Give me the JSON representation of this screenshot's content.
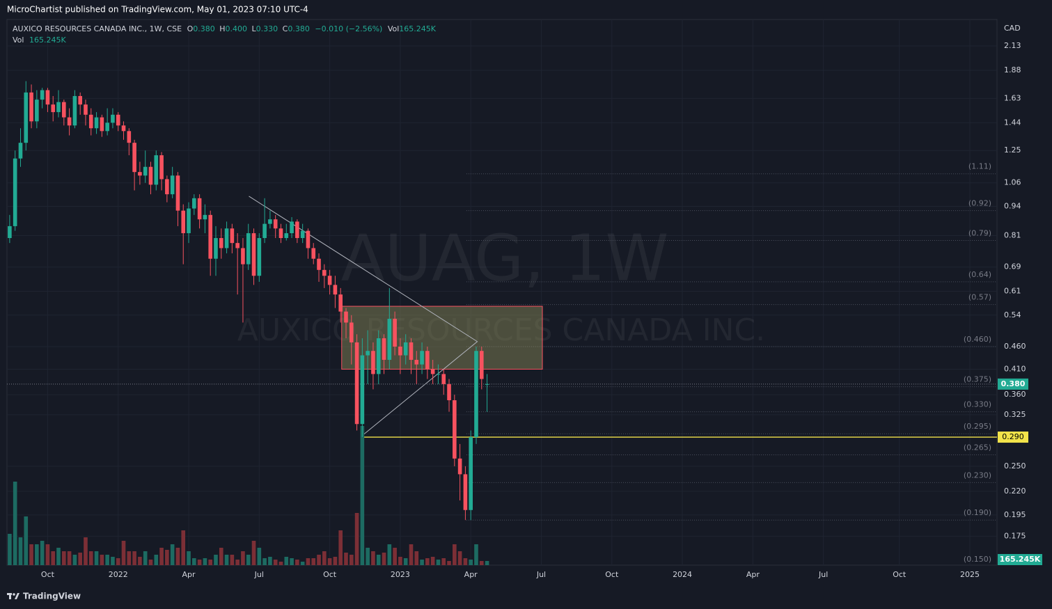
{
  "header": {
    "publisher": "MicroChartist published on TradingView.com, May 01, 2023 07:10 UTC-4",
    "brand": "TradingView"
  },
  "chart_data": {
    "type": "candlestick",
    "title": "AUXICO RESOURCES CANADA INC., 1W, CSE",
    "legend": {
      "o_label": "O",
      "o": "0.380",
      "h_label": "H",
      "h": "0.400",
      "l_label": "L",
      "l": "0.330",
      "c_label": "C",
      "c": "0.380",
      "change": "−0.010 (−2.56%)",
      "vol_label": "Vol",
      "vol": "165.245K"
    },
    "watermark": {
      "symbol": "AUAG, 1W",
      "name": "AUXICO RESOURCES CANADA INC."
    },
    "y_label": "CAD",
    "log_scale": true,
    "grid": true,
    "ylim": [
      0.151,
      2.42
    ],
    "yticks": [
      2.13,
      1.88,
      1.63,
      1.44,
      1.25,
      1.06,
      0.94,
      0.81,
      0.69,
      0.61,
      0.54,
      {
        "value": 0.46,
        "label": "0.460"
      },
      {
        "value": 0.41,
        "label": "0.410"
      },
      {
        "value": 0.36,
        "label": "0.360"
      },
      0.325,
      {
        "value": 0.25,
        "label": "0.250"
      },
      {
        "value": 0.22,
        "label": "0.220"
      },
      0.195,
      0.175
    ],
    "xlim": [
      -0.5,
      182
    ],
    "xticks": [
      {
        "value": 7,
        "label": "Oct"
      },
      {
        "value": 20,
        "label": "2022"
      },
      {
        "value": 33,
        "label": "Apr"
      },
      {
        "value": 46,
        "label": "Jul"
      },
      {
        "value": 59,
        "label": "Oct"
      },
      {
        "value": 72,
        "label": "2023"
      },
      {
        "value": 85,
        "label": "Apr"
      },
      {
        "value": 98,
        "label": "Jul"
      },
      {
        "value": 111,
        "label": "Oct"
      },
      {
        "value": 124,
        "label": "2024"
      },
      {
        "value": 137,
        "label": "Apr"
      },
      {
        "value": 150,
        "label": "Jul"
      },
      {
        "value": 164,
        "label": "Oct"
      },
      {
        "value": 177,
        "label": "2025"
      }
    ],
    "up_color": "#22ab94",
    "down_color": "#f7525f",
    "up_volume_color": "#1d6b62",
    "down_volume_color": "#7c2f36",
    "open": [
      0.8,
      0.85,
      1.2,
      1.3,
      1.68,
      1.45,
      1.62,
      1.7,
      1.58,
      1.52,
      1.6,
      1.48,
      1.42,
      1.65,
      1.58,
      1.5,
      1.4,
      1.48,
      1.38,
      1.44,
      1.5,
      1.42,
      1.38,
      1.3,
      1.12,
      1.1,
      1.15,
      1.05,
      1.22,
      1.08,
      1.0,
      1.1,
      0.92,
      0.82,
      0.93,
      0.98,
      0.88,
      0.9,
      0.72,
      0.8,
      0.76,
      0.84,
      0.78,
      0.76,
      0.7,
      0.82,
      0.66,
      0.8,
      0.86,
      0.88,
      0.84,
      0.8,
      0.82,
      0.87,
      0.8,
      0.83,
      0.76,
      0.72,
      0.68,
      0.66,
      0.63,
      0.6,
      0.55,
      0.52,
      0.47,
      0.31,
      0.44,
      0.45,
      0.4,
      0.48,
      0.43,
      0.53,
      0.46,
      0.44,
      0.47,
      0.43,
      0.42,
      0.45,
      0.41,
      0.4,
      0.4,
      0.38,
      0.35,
      0.26,
      0.24,
      0.2,
      0.29,
      0.45,
      0.38
    ],
    "high": [
      0.9,
      1.25,
      1.4,
      1.78,
      1.75,
      1.7,
      1.72,
      1.72,
      1.65,
      1.7,
      1.62,
      1.55,
      1.7,
      1.68,
      1.62,
      1.55,
      1.52,
      1.5,
      1.55,
      1.55,
      1.52,
      1.45,
      1.4,
      1.32,
      1.18,
      1.25,
      1.18,
      1.25,
      1.24,
      1.1,
      1.15,
      1.12,
      0.95,
      0.96,
      1.0,
      1.0,
      0.95,
      0.92,
      0.85,
      0.84,
      0.87,
      0.86,
      0.82,
      0.8,
      0.86,
      0.84,
      0.82,
      0.98,
      0.92,
      0.9,
      0.86,
      0.86,
      0.89,
      0.88,
      0.86,
      0.84,
      0.78,
      0.74,
      0.7,
      0.68,
      0.66,
      0.62,
      0.56,
      0.54,
      0.49,
      0.48,
      0.5,
      0.47,
      0.5,
      0.49,
      0.62,
      0.55,
      0.48,
      0.49,
      0.48,
      0.45,
      0.47,
      0.46,
      0.43,
      0.42,
      0.41,
      0.39,
      0.36,
      0.28,
      0.25,
      0.3,
      0.46,
      0.46,
      0.4
    ],
    "low": [
      0.78,
      0.83,
      1.15,
      1.25,
      1.4,
      1.4,
      1.55,
      1.52,
      1.45,
      1.48,
      1.42,
      1.35,
      1.4,
      1.5,
      1.42,
      1.35,
      1.36,
      1.34,
      1.35,
      1.4,
      1.38,
      1.32,
      1.22,
      1.02,
      1.05,
      1.06,
      1.0,
      1.02,
      1.02,
      0.96,
      0.98,
      0.85,
      0.7,
      0.78,
      0.9,
      0.84,
      0.82,
      0.66,
      0.66,
      0.72,
      0.74,
      0.74,
      0.6,
      0.52,
      0.68,
      0.63,
      0.64,
      0.78,
      0.84,
      0.8,
      0.78,
      0.79,
      0.8,
      0.78,
      0.78,
      0.72,
      0.7,
      0.64,
      0.62,
      0.6,
      0.56,
      0.52,
      0.48,
      0.42,
      0.3,
      0.29,
      0.38,
      0.37,
      0.38,
      0.4,
      0.41,
      0.44,
      0.4,
      0.42,
      0.4,
      0.38,
      0.4,
      0.39,
      0.38,
      0.38,
      0.36,
      0.33,
      0.25,
      0.21,
      0.19,
      0.19,
      0.28,
      0.37,
      0.33
    ],
    "close": [
      0.85,
      1.2,
      1.3,
      1.68,
      1.45,
      1.62,
      1.7,
      1.58,
      1.52,
      1.6,
      1.48,
      1.42,
      1.65,
      1.58,
      1.5,
      1.4,
      1.48,
      1.38,
      1.44,
      1.5,
      1.42,
      1.38,
      1.3,
      1.12,
      1.1,
      1.15,
      1.05,
      1.22,
      1.08,
      1.0,
      1.1,
      0.92,
      0.82,
      0.93,
      0.98,
      0.88,
      0.9,
      0.72,
      0.8,
      0.76,
      0.84,
      0.78,
      0.76,
      0.7,
      0.82,
      0.66,
      0.8,
      0.86,
      0.88,
      0.84,
      0.8,
      0.82,
      0.87,
      0.8,
      0.83,
      0.76,
      0.72,
      0.68,
      0.66,
      0.63,
      0.6,
      0.55,
      0.52,
      0.47,
      0.31,
      0.44,
      0.45,
      0.4,
      0.48,
      0.43,
      0.53,
      0.46,
      0.44,
      0.47,
      0.43,
      0.42,
      0.45,
      0.41,
      0.4,
      0.4,
      0.38,
      0.35,
      0.26,
      0.24,
      0.2,
      0.29,
      0.45,
      0.39,
      0.38
    ],
    "volume": [
      1237500,
      3300000,
      1100000,
      1925000,
      825000,
      825000,
      962500,
      825000,
      550000,
      687500,
      550000,
      550000,
      412500,
      495000,
      1100000,
      550000,
      550000,
      412500,
      412500,
      330000,
      275000,
      962500,
      550000,
      550000,
      330000,
      550000,
      220000,
      412500,
      687500,
      605000,
      825000,
      687500,
      1375000,
      550000,
      275000,
      220000,
      275000,
      220000,
      412500,
      687500,
      412500,
      412500,
      220000,
      550000,
      412500,
      962500,
      687500,
      275000,
      330000,
      220000,
      137500,
      330000,
      275000,
      220000,
      137500,
      275000,
      275000,
      412500,
      550000,
      275000,
      330000,
      1375000,
      495000,
      412500,
      2062500,
      5500000,
      687500,
      550000,
      412500,
      495000,
      825000,
      687500,
      330000,
      275000,
      825000,
      550000,
      220000,
      275000,
      330000,
      220000,
      275000,
      165000,
      825000,
      550000,
      275000,
      220000,
      825000,
      165000,
      165245
    ],
    "volume_label": "165.245K",
    "last_price": {
      "value": 0.38,
      "label": "0.380",
      "color": "#22ab94"
    },
    "support_line": {
      "value": 0.29,
      "label": "0.290",
      "from": 65.1,
      "color": "#f2e34a"
    },
    "levels_from": 84.2,
    "levels": [
      {
        "value": 1.11,
        "label": "(1.11)"
      },
      {
        "value": 0.92,
        "label": "(0.92)"
      },
      {
        "value": 0.79,
        "label": "(0.79)"
      },
      {
        "value": 0.64,
        "label": "(0.64)"
      },
      {
        "value": 0.57,
        "label": "(0.57)"
      },
      {
        "value": 0.46,
        "label": "(0.460)"
      },
      {
        "value": 0.375,
        "label": "(0.375)"
      },
      {
        "value": 0.33,
        "label": "(0.330)"
      },
      {
        "value": 0.295,
        "label": "(0.295)"
      },
      {
        "value": 0.265,
        "label": "(0.265)"
      },
      {
        "value": 0.23,
        "label": "(0.230)"
      },
      {
        "value": 0.19,
        "label": "(0.190)"
      },
      {
        "value": 0.15,
        "label": "(0.150)"
      }
    ],
    "box": {
      "x": [
        61.2,
        98.2
      ],
      "y": [
        0.41,
        0.565
      ]
    },
    "triangle": {
      "x": [
        44.1,
        86.2,
        65.1
      ],
      "y": [
        0.99,
        0.472,
        0.293
      ]
    }
  }
}
